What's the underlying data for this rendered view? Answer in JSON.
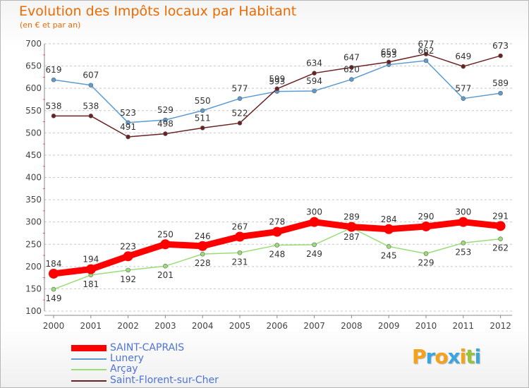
{
  "title": "Evolution des Impôts locaux par Habitant",
  "subtitle": "(en € et par an)",
  "logo": {
    "text": "Proxiti",
    "letters": [
      {
        "ch": "P",
        "color": "#f5a21a"
      },
      {
        "ch": "r",
        "color": "#3aa6dd"
      },
      {
        "ch": "o",
        "color": "#f5a21a"
      },
      {
        "ch": "x",
        "color": "#3aa6dd"
      },
      {
        "ch": "i",
        "color": "#f5a21a"
      },
      {
        "ch": "t",
        "color": "#99c23c"
      },
      {
        "ch": "i",
        "color": "#3aa6dd"
      }
    ]
  },
  "chart_data": {
    "type": "line",
    "categories": [
      "2000",
      "2001",
      "2002",
      "2003",
      "2004",
      "2005",
      "2006",
      "2007",
      "2008",
      "2009",
      "2010",
      "2011",
      "2012"
    ],
    "ylim": [
      100,
      700
    ],
    "yticks": [
      100,
      150,
      200,
      250,
      300,
      350,
      400,
      450,
      500,
      550,
      600,
      650,
      700
    ],
    "grid": "horizontal dashed",
    "legend_position": "bottom-left",
    "series": [
      {
        "name": "SAINT-CAPRAIS",
        "color": "#ff0000",
        "values": [
          184,
          194,
          223,
          250,
          246,
          267,
          278,
          300,
          289,
          284,
          290,
          300,
          291
        ]
      },
      {
        "name": "Lunery",
        "color": "#5b9bd0",
        "values": [
          619,
          607,
          523,
          529,
          550,
          577,
          593,
          594,
          620,
          653,
          662,
          577,
          589
        ]
      },
      {
        "name": "Arçay",
        "color": "#99dd77",
        "values": [
          149,
          181,
          192,
          201,
          228,
          231,
          248,
          249,
          287,
          245,
          229,
          253,
          262
        ]
      },
      {
        "name": "Saint-Florent-sur-Cher",
        "color": "#6b2121",
        "values": [
          538,
          538,
          491,
          498,
          511,
          522,
          599,
          634,
          647,
          659,
          677,
          649,
          673
        ]
      }
    ]
  }
}
